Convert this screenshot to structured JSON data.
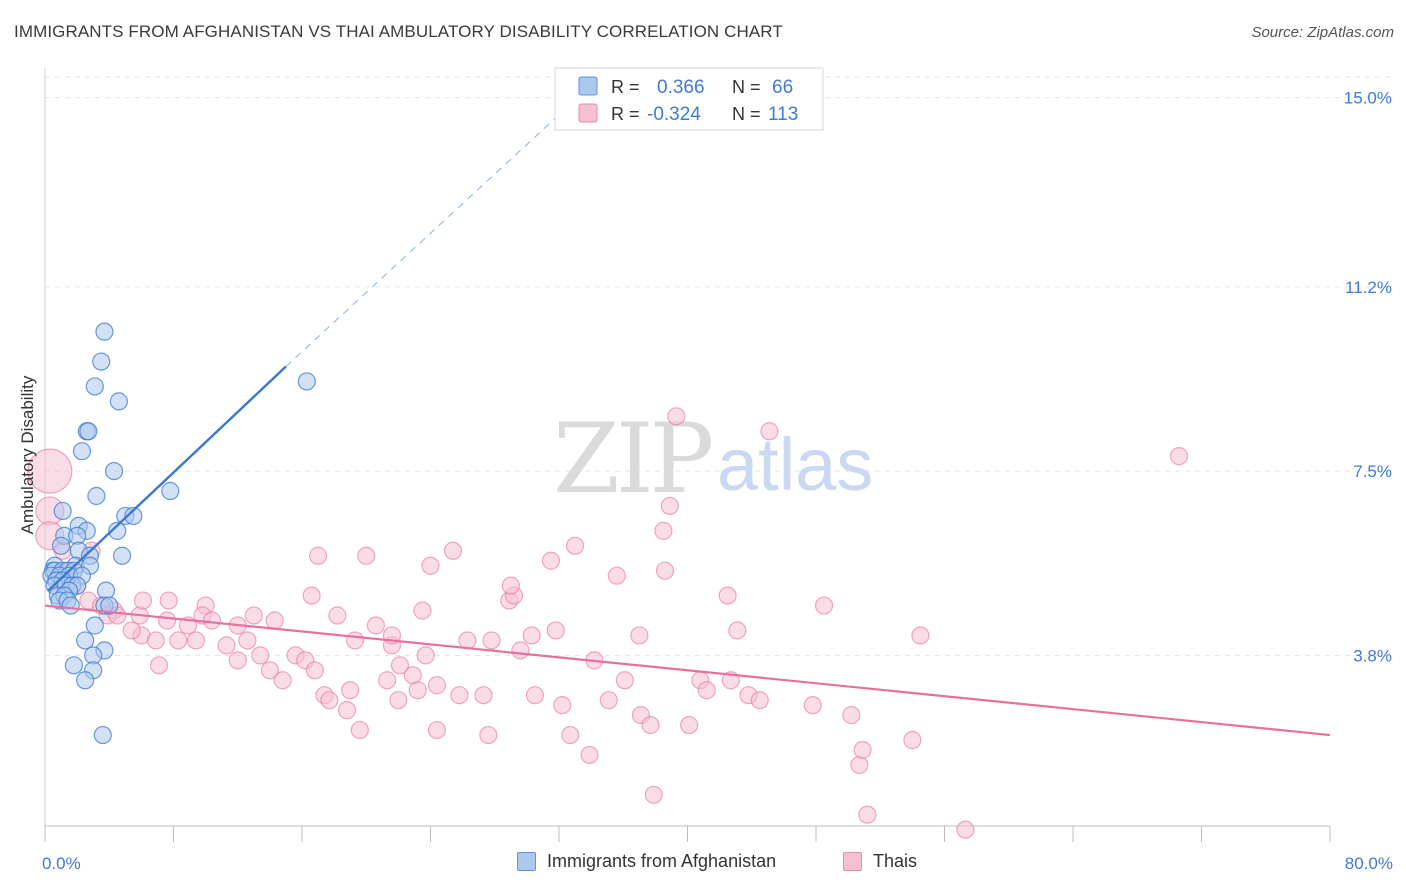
{
  "header": {
    "title": "IMMIGRANTS FROM AFGHANISTAN VS THAI AMBULATORY DISABILITY CORRELATION CHART",
    "source": "Source: ZipAtlas.com"
  },
  "watermark": {
    "zip": "ZIP",
    "atlas": "atlas"
  },
  "legend_top": {
    "rows": [
      {
        "r_label": "R =",
        "r_value": "0.366",
        "n_label": "N =",
        "n_value": "66"
      },
      {
        "r_label": "R =",
        "r_value": "-0.324",
        "n_label": "N =",
        "n_value": "113"
      }
    ]
  },
  "legend_bottom": {
    "items": [
      {
        "label": "Immigrants from Afghanistan"
      },
      {
        "label": "Thais"
      }
    ]
  },
  "colors": {
    "blue": "#3b78d0",
    "blue_fill": "#adc8ee",
    "pink": "#e8709e",
    "pink_fill": "#f6bfd3",
    "value_text": "#3d7bd8",
    "grid": "#e3e3e3"
  },
  "chart_data": {
    "type": "scatter",
    "title": "IMMIGRANTS FROM AFGHANISTAN VS THAI AMBULATORY DISABILITY CORRELATION CHART",
    "xlabel": "",
    "ylabel": "Ambulatory Disability",
    "xlim": [
      0,
      80
    ],
    "ylim": [
      0,
      15.5
    ],
    "x_tick_labels": [
      "0.0%",
      "80.0%"
    ],
    "y_ticks": [
      3.8,
      7.5,
      11.2,
      15.0
    ],
    "y_tick_labels": [
      "3.8%",
      "7.5%",
      "11.2%",
      "15.0%"
    ],
    "grid": true,
    "legend_position": "top-center",
    "series": [
      {
        "name": "Immigrants from Afghanistan",
        "color": "blue",
        "r": 0.366,
        "n": 66,
        "trend": {
          "x": [
            0.2,
            15.0
          ],
          "y": [
            5.1,
            9.6
          ]
        },
        "trend_extension": {
          "x": [
            15.0,
            33.5
          ],
          "y": [
            9.6,
            15.1
          ]
        },
        "points": [
          [
            3.7,
            10.3
          ],
          [
            3.5,
            9.7
          ],
          [
            3.1,
            9.2
          ],
          [
            4.6,
            8.9
          ],
          [
            2.6,
            8.3
          ],
          [
            2.7,
            8.3
          ],
          [
            2.3,
            7.9
          ],
          [
            4.3,
            7.5
          ],
          [
            3.2,
            7.0
          ],
          [
            1.1,
            6.7
          ],
          [
            2.1,
            6.4
          ],
          [
            2.6,
            6.3
          ],
          [
            4.5,
            6.3
          ],
          [
            5.0,
            6.6
          ],
          [
            5.5,
            6.6
          ],
          [
            1.2,
            6.2
          ],
          [
            2.0,
            6.2
          ],
          [
            1.0,
            6.0
          ],
          [
            2.1,
            5.9
          ],
          [
            2.8,
            5.8
          ],
          [
            4.8,
            5.8
          ],
          [
            0.6,
            5.6
          ],
          [
            1.9,
            5.6
          ],
          [
            2.8,
            5.6
          ],
          [
            0.5,
            5.5
          ],
          [
            0.6,
            5.5
          ],
          [
            1.1,
            5.5
          ],
          [
            1.4,
            5.5
          ],
          [
            1.8,
            5.5
          ],
          [
            0.4,
            5.4
          ],
          [
            0.9,
            5.4
          ],
          [
            1.5,
            5.4
          ],
          [
            2.3,
            5.4
          ],
          [
            0.7,
            5.3
          ],
          [
            1.1,
            5.3
          ],
          [
            0.6,
            5.2
          ],
          [
            1.3,
            5.2
          ],
          [
            1.7,
            5.2
          ],
          [
            2.0,
            5.2
          ],
          [
            1.5,
            5.1
          ],
          [
            0.8,
            5.0
          ],
          [
            1.2,
            5.0
          ],
          [
            3.8,
            5.1
          ],
          [
            0.9,
            4.9
          ],
          [
            1.4,
            4.9
          ],
          [
            3.7,
            4.8
          ],
          [
            4.0,
            4.8
          ],
          [
            1.6,
            4.8
          ],
          [
            3.1,
            4.4
          ],
          [
            2.5,
            4.1
          ],
          [
            3.7,
            3.9
          ],
          [
            3.0,
            3.8
          ],
          [
            1.8,
            3.6
          ],
          [
            3.0,
            3.5
          ],
          [
            2.5,
            3.3
          ],
          [
            3.6,
            2.2
          ],
          [
            16.3,
            9.3
          ],
          [
            7.8,
            7.1
          ]
        ]
      },
      {
        "name": "Thais",
        "color": "pink",
        "r": -0.324,
        "n": 113,
        "trend": {
          "x": [
            0.0,
            80.0
          ],
          "y": [
            4.8,
            2.2
          ]
        },
        "points": [
          [
            0.3,
            7.5
          ],
          [
            0.3,
            6.7
          ],
          [
            0.3,
            6.2
          ],
          [
            1.1,
            5.9
          ],
          [
            2.9,
            5.9
          ],
          [
            1.5,
            5.5
          ],
          [
            2.0,
            5.2
          ],
          [
            2.7,
            4.9
          ],
          [
            3.5,
            4.8
          ],
          [
            4.3,
            4.7
          ],
          [
            3.9,
            4.6
          ],
          [
            4.5,
            4.6
          ],
          [
            5.9,
            4.6
          ],
          [
            6.1,
            4.9
          ],
          [
            7.7,
            4.9
          ],
          [
            6.0,
            4.2
          ],
          [
            5.4,
            4.3
          ],
          [
            6.9,
            4.1
          ],
          [
            7.6,
            4.5
          ],
          [
            8.3,
            4.1
          ],
          [
            9.4,
            4.1
          ],
          [
            8.9,
            4.4
          ],
          [
            10.0,
            4.8
          ],
          [
            9.8,
            4.6
          ],
          [
            10.4,
            4.5
          ],
          [
            11.3,
            4.0
          ],
          [
            12.0,
            4.4
          ],
          [
            12.6,
            4.1
          ],
          [
            12.0,
            3.7
          ],
          [
            7.1,
            3.6
          ],
          [
            13.0,
            4.6
          ],
          [
            14.3,
            4.5
          ],
          [
            13.4,
            3.8
          ],
          [
            14.0,
            3.5
          ],
          [
            14.8,
            3.3
          ],
          [
            15.6,
            3.8
          ],
          [
            16.2,
            3.7
          ],
          [
            16.8,
            3.5
          ],
          [
            18.2,
            4.6
          ],
          [
            16.6,
            5.0
          ],
          [
            19.3,
            4.1
          ],
          [
            20.6,
            4.4
          ],
          [
            21.6,
            4.0
          ],
          [
            19.0,
            3.1
          ],
          [
            17.4,
            3.0
          ],
          [
            17.7,
            2.9
          ],
          [
            18.8,
            2.7
          ],
          [
            19.6,
            2.3
          ],
          [
            20.0,
            5.8
          ],
          [
            21.6,
            4.2
          ],
          [
            22.1,
            3.6
          ],
          [
            22.9,
            3.4
          ],
          [
            21.3,
            3.3
          ],
          [
            23.2,
            3.1
          ],
          [
            23.7,
            3.8
          ],
          [
            24.4,
            3.2
          ],
          [
            22.0,
            2.9
          ],
          [
            23.5,
            4.7
          ],
          [
            25.4,
            5.9
          ],
          [
            24.4,
            2.3
          ],
          [
            26.3,
            4.1
          ],
          [
            25.8,
            3.0
          ],
          [
            27.3,
            3.0
          ],
          [
            27.8,
            4.1
          ],
          [
            27.6,
            2.2
          ],
          [
            28.9,
            4.9
          ],
          [
            29.2,
            5.0
          ],
          [
            29.6,
            3.9
          ],
          [
            30.3,
            4.2
          ],
          [
            30.5,
            3.0
          ],
          [
            31.8,
            4.3
          ],
          [
            32.2,
            2.8
          ],
          [
            32.7,
            2.2
          ],
          [
            33.9,
            1.8
          ],
          [
            34.2,
            3.7
          ],
          [
            35.1,
            2.9
          ],
          [
            35.6,
            5.4
          ],
          [
            36.1,
            3.3
          ],
          [
            37.1,
            2.6
          ],
          [
            37.7,
            2.4
          ],
          [
            37.9,
            1.0
          ],
          [
            38.6,
            5.5
          ],
          [
            38.5,
            6.3
          ],
          [
            38.9,
            6.8
          ],
          [
            39.3,
            8.6
          ],
          [
            37.0,
            4.2
          ],
          [
            40.1,
            2.4
          ],
          [
            40.8,
            3.3
          ],
          [
            41.2,
            3.1
          ],
          [
            42.7,
            3.3
          ],
          [
            42.5,
            5.0
          ],
          [
            43.8,
            3.0
          ],
          [
            43.1,
            4.3
          ],
          [
            44.5,
            2.9
          ],
          [
            45.1,
            8.3
          ],
          [
            47.8,
            2.8
          ],
          [
            48.5,
            4.8
          ],
          [
            50.2,
            2.6
          ],
          [
            50.7,
            1.6
          ],
          [
            50.9,
            1.9
          ],
          [
            51.2,
            0.6
          ],
          [
            54.0,
            2.1
          ],
          [
            54.5,
            4.2
          ],
          [
            57.3,
            0.3
          ],
          [
            70.6,
            7.8
          ],
          [
            17.0,
            5.8
          ],
          [
            31.5,
            5.7
          ],
          [
            29.0,
            5.2
          ],
          [
            24.0,
            5.6
          ],
          [
            33.0,
            6.0
          ]
        ]
      }
    ]
  }
}
